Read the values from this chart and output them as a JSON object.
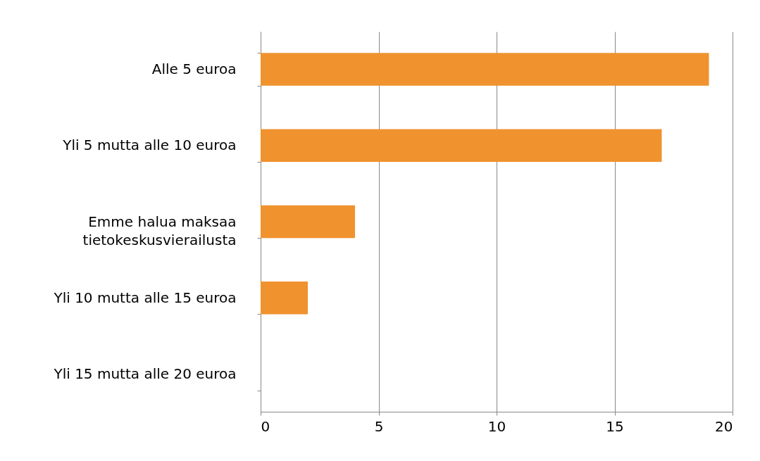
{
  "chart_data": {
    "type": "bar",
    "orientation": "horizontal",
    "categories": [
      "Alle 5 euroa",
      "Yli 5 mutta alle 10 euroa",
      "Emme halua maksaa tietokeskusvierailusta",
      "Yli 10 mutta alle 15 euroa",
      "Yli 15 mutta alle 20 euroa"
    ],
    "values": [
      19,
      17,
      4,
      2,
      0
    ],
    "color": "#f0922e",
    "xlim": [
      0,
      20
    ],
    "xticks": [
      0,
      5,
      10,
      15,
      20
    ],
    "grid": "x"
  }
}
